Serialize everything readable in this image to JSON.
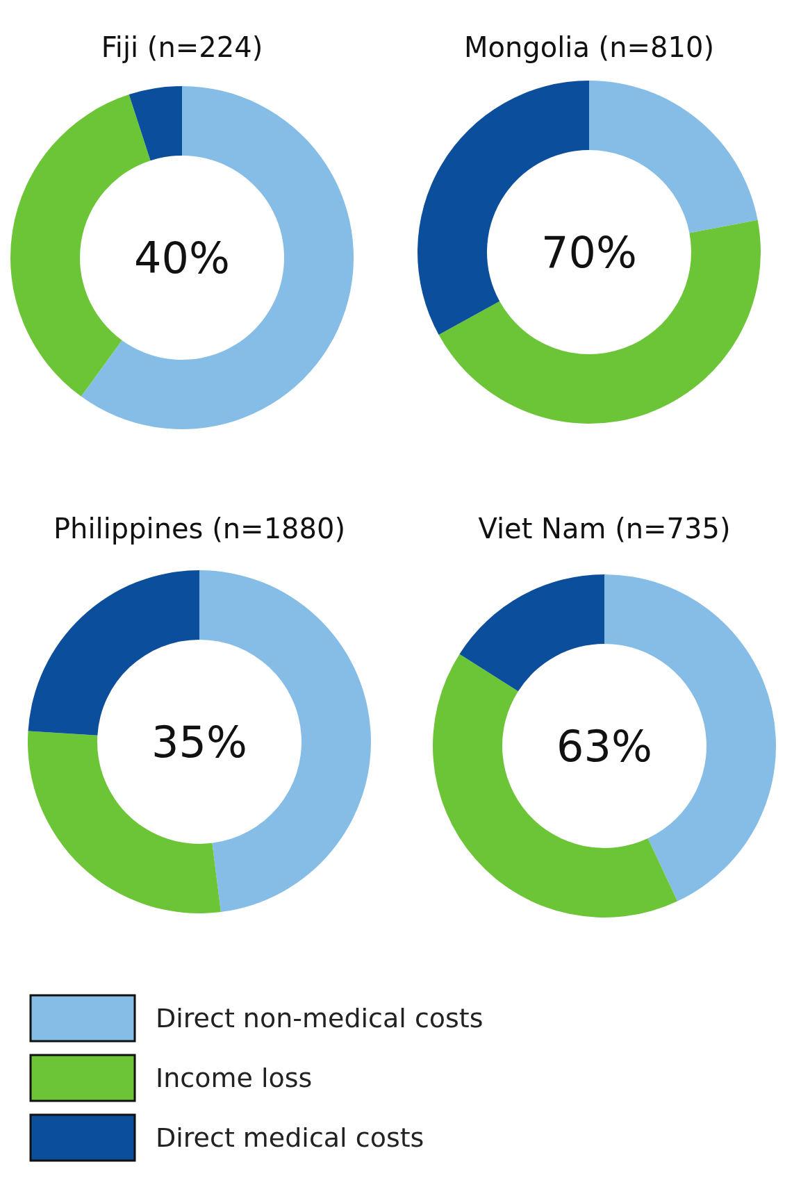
{
  "chart_data": [
    {
      "type": "donut",
      "title": "Fiji (n=224)",
      "categories": [
        "Direct non-medical costs",
        "Income loss",
        "Direct medical costs"
      ],
      "values": [
        60,
        35,
        5
      ],
      "colors": [
        "#85bde6",
        "#6cc437",
        "#0b4f9c"
      ],
      "annotations": [
        "40%"
      ],
      "legend": "bottom"
    },
    {
      "type": "donut",
      "title": "Mongolia (n=810)",
      "categories": [
        null,
        null,
        null
      ],
      "values": [
        22,
        45,
        33
      ],
      "colors": [
        "#85bde6",
        "#6cc437",
        "#0b4f9c"
      ],
      "annotations": [
        "70%"
      ]
    },
    {
      "type": "donut",
      "title": "Philippines (n=1880)",
      "categories": [
        null,
        null,
        null
      ],
      "values": [
        48,
        28,
        24
      ],
      "colors": [
        "#85bde6",
        "#6cc437",
        "#0b4f9c"
      ],
      "annotations": [
        "35%"
      ]
    },
    {
      "type": "donut",
      "title": "Viet Nam (n=735)",
      "categories": [
        null,
        null,
        null
      ],
      "values": [
        43,
        41,
        16
      ],
      "colors": [
        "#85bde6",
        "#6cc437",
        "#0b4f9c"
      ],
      "annotations": [
        "63%"
      ]
    }
  ]
}
